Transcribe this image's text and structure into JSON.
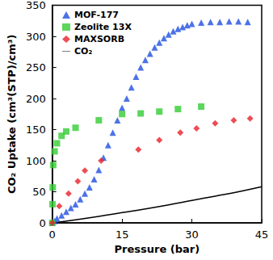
{
  "chart_data": {
    "type": "scatter",
    "x_label": "Pressure (bar)",
    "y_label": "CO₂ Uptake (cm³(STP)/cm³)",
    "xlim": [
      0,
      45
    ],
    "xticks": [
      0,
      15,
      30,
      45
    ],
    "ylim": [
      0,
      350
    ],
    "yticks": [
      0,
      50,
      100,
      150,
      200,
      250,
      300,
      350
    ],
    "grid": false,
    "legend": "upper left",
    "series": [
      {
        "name": "MOF-177",
        "type": "scatter",
        "marker": "triangle",
        "color": "#1f4fe0",
        "x": [
          0,
          0.5,
          1,
          2,
          3,
          4,
          5,
          6,
          7,
          8,
          9,
          10,
          11,
          12,
          13,
          14,
          15,
          16,
          17,
          18,
          19,
          20,
          21,
          22,
          23,
          24,
          25,
          26,
          27,
          28,
          29,
          30,
          32,
          34,
          36,
          38,
          40,
          42
        ],
        "values": [
          0,
          3,
          7,
          12,
          18,
          24,
          30,
          38,
          47,
          57,
          70,
          85,
          105,
          125,
          145,
          165,
          185,
          200,
          218,
          235,
          250,
          262,
          272,
          282,
          290,
          297,
          303,
          308,
          312,
          315,
          318,
          320,
          322,
          323,
          323,
          324,
          324,
          323
        ]
      },
      {
        "name": "Zeolite 13X",
        "type": "scatter",
        "marker": "square",
        "color": "#33cc33",
        "x": [
          0,
          0.05,
          0.1,
          0.2,
          0.5,
          1,
          2,
          3,
          5,
          10,
          15,
          19,
          23,
          27,
          32
        ],
        "values": [
          0,
          30,
          57,
          93,
          115,
          128,
          140,
          147,
          153,
          165,
          175,
          176,
          179,
          183,
          187
        ]
      },
      {
        "name": "MAXSORB",
        "type": "scatter",
        "marker": "diamond",
        "color": "#e8202a",
        "x": [
          0,
          1.5,
          3.5,
          5.5,
          7,
          10.5,
          18.5,
          23,
          27.5,
          31,
          35,
          39,
          42.5
        ],
        "values": [
          0,
          27,
          47,
          67,
          84,
          100,
          118,
          133,
          145,
          152,
          160,
          165,
          168
        ]
      },
      {
        "name": "CO₂",
        "type": "line",
        "line_style": "solid",
        "color": "#000000",
        "x": [
          0,
          5,
          10,
          15,
          20,
          25,
          30,
          35,
          40,
          45
        ],
        "values": [
          0,
          5,
          10.5,
          16.5,
          22.5,
          29,
          36,
          43,
          50,
          58
        ]
      }
    ]
  }
}
